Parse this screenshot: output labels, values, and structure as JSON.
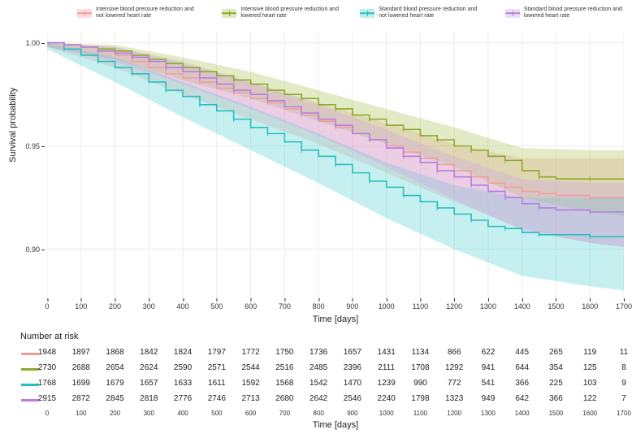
{
  "chart": {
    "type": "kaplan-meier-survival",
    "background_color": "#ffffff",
    "grid_color": "#ececec",
    "text_color": "#333333",
    "title_fontsize": 11,
    "tick_fontsize": 9,
    "legend_fontsize": 7,
    "x_label": "Time [days]",
    "y_label": "Survival probability",
    "xlim": [
      0,
      1700
    ],
    "ylim": [
      0.875,
      1.005
    ],
    "x_ticks": [
      0,
      100,
      200,
      300,
      400,
      500,
      600,
      700,
      800,
      900,
      1000,
      1100,
      1200,
      1300,
      1400,
      1500,
      1600,
      1700
    ],
    "y_ticks": [
      0.9,
      0.95,
      1.0
    ],
    "series": [
      {
        "id": "intensive_not_lowered",
        "label": "Intensive blood pressure reduction and not lowered heart rate",
        "color": "#f29ea0",
        "color_band": "#f29ea0",
        "line_width": 1.6,
        "band_opacity": 0.3,
        "points": [
          [
            0,
            1.0
          ],
          [
            50,
            0.999
          ],
          [
            100,
            0.998
          ],
          [
            150,
            0.996
          ],
          [
            200,
            0.994
          ],
          [
            250,
            0.991
          ],
          [
            300,
            0.988
          ],
          [
            350,
            0.985
          ],
          [
            400,
            0.983
          ],
          [
            450,
            0.981
          ],
          [
            500,
            0.978
          ],
          [
            550,
            0.976
          ],
          [
            600,
            0.973
          ],
          [
            650,
            0.971
          ],
          [
            700,
            0.968
          ],
          [
            750,
            0.965
          ],
          [
            800,
            0.962
          ],
          [
            850,
            0.959
          ],
          [
            900,
            0.956
          ],
          [
            950,
            0.953
          ],
          [
            1000,
            0.95
          ],
          [
            1050,
            0.947
          ],
          [
            1100,
            0.944
          ],
          [
            1150,
            0.941
          ],
          [
            1200,
            0.938
          ],
          [
            1250,
            0.935
          ],
          [
            1300,
            0.932
          ],
          [
            1350,
            0.93
          ],
          [
            1400,
            0.928
          ],
          [
            1450,
            0.927
          ],
          [
            1500,
            0.926
          ],
          [
            1600,
            0.925
          ],
          [
            1700,
            0.925
          ]
        ],
        "ci_points": [
          [
            0,
            0.998,
            1.0
          ],
          [
            200,
            0.988,
            0.998
          ],
          [
            400,
            0.975,
            0.99
          ],
          [
            600,
            0.963,
            0.981
          ],
          [
            800,
            0.951,
            0.971
          ],
          [
            1000,
            0.937,
            0.961
          ],
          [
            1200,
            0.923,
            0.951
          ],
          [
            1400,
            0.91,
            0.944
          ],
          [
            1600,
            0.903,
            0.944
          ],
          [
            1700,
            0.901,
            0.944
          ]
        ]
      },
      {
        "id": "intensive_lowered",
        "label": "Intensive blood pressure reduction and lowered heart rate",
        "color": "#8aaa2a",
        "color_band": "#a8c24f",
        "line_width": 1.6,
        "band_opacity": 0.32,
        "points": [
          [
            0,
            1.0
          ],
          [
            50,
            0.999
          ],
          [
            100,
            0.998
          ],
          [
            150,
            0.997
          ],
          [
            200,
            0.996
          ],
          [
            250,
            0.994
          ],
          [
            300,
            0.992
          ],
          [
            350,
            0.99
          ],
          [
            400,
            0.988
          ],
          [
            450,
            0.986
          ],
          [
            500,
            0.984
          ],
          [
            550,
            0.982
          ],
          [
            600,
            0.98
          ],
          [
            650,
            0.977
          ],
          [
            700,
            0.975
          ],
          [
            750,
            0.973
          ],
          [
            800,
            0.97
          ],
          [
            850,
            0.968
          ],
          [
            900,
            0.965
          ],
          [
            950,
            0.963
          ],
          [
            1000,
            0.96
          ],
          [
            1050,
            0.958
          ],
          [
            1100,
            0.955
          ],
          [
            1150,
            0.953
          ],
          [
            1200,
            0.95
          ],
          [
            1250,
            0.948
          ],
          [
            1300,
            0.945
          ],
          [
            1350,
            0.943
          ],
          [
            1400,
            0.938
          ],
          [
            1450,
            0.935
          ],
          [
            1500,
            0.934
          ],
          [
            1600,
            0.934
          ],
          [
            1700,
            0.934
          ]
        ],
        "ci_points": [
          [
            0,
            0.998,
            1.0
          ],
          [
            200,
            0.992,
            0.999
          ],
          [
            400,
            0.982,
            0.993
          ],
          [
            600,
            0.973,
            0.986
          ],
          [
            800,
            0.962,
            0.977
          ],
          [
            1000,
            0.951,
            0.968
          ],
          [
            1200,
            0.94,
            0.959
          ],
          [
            1400,
            0.925,
            0.949
          ],
          [
            1600,
            0.918,
            0.948
          ],
          [
            1700,
            0.916,
            0.948
          ]
        ]
      },
      {
        "id": "standard_not_lowered",
        "label": "Standard blood pressure reduction and not lowered heart rate",
        "color": "#26bfbf",
        "color_band": "#4fcccc",
        "line_width": 1.6,
        "band_opacity": 0.32,
        "points": [
          [
            0,
            1.0
          ],
          [
            50,
            0.997
          ],
          [
            100,
            0.994
          ],
          [
            150,
            0.991
          ],
          [
            200,
            0.988
          ],
          [
            250,
            0.985
          ],
          [
            300,
            0.981
          ],
          [
            350,
            0.977
          ],
          [
            400,
            0.974
          ],
          [
            450,
            0.97
          ],
          [
            500,
            0.967
          ],
          [
            550,
            0.963
          ],
          [
            600,
            0.959
          ],
          [
            650,
            0.956
          ],
          [
            700,
            0.952
          ],
          [
            750,
            0.948
          ],
          [
            800,
            0.945
          ],
          [
            850,
            0.941
          ],
          [
            900,
            0.937
          ],
          [
            950,
            0.933
          ],
          [
            1000,
            0.93
          ],
          [
            1050,
            0.926
          ],
          [
            1100,
            0.923
          ],
          [
            1150,
            0.92
          ],
          [
            1200,
            0.917
          ],
          [
            1250,
            0.914
          ],
          [
            1300,
            0.911
          ],
          [
            1350,
            0.91
          ],
          [
            1400,
            0.908
          ],
          [
            1450,
            0.907
          ],
          [
            1500,
            0.907
          ],
          [
            1600,
            0.906
          ],
          [
            1700,
            0.906
          ]
        ],
        "ci_points": [
          [
            0,
            0.997,
            1.0
          ],
          [
            200,
            0.981,
            0.993
          ],
          [
            400,
            0.964,
            0.981
          ],
          [
            600,
            0.948,
            0.969
          ],
          [
            800,
            0.932,
            0.956
          ],
          [
            1000,
            0.915,
            0.942
          ],
          [
            1200,
            0.9,
            0.931
          ],
          [
            1400,
            0.887,
            0.925
          ],
          [
            1600,
            0.882,
            0.925
          ],
          [
            1700,
            0.88,
            0.925
          ]
        ]
      },
      {
        "id": "standard_lowered",
        "label": "Standard blood pressure reduction and lowered heart rate",
        "color": "#b57ee0",
        "color_band": "#c9a1e8",
        "line_width": 1.6,
        "band_opacity": 0.32,
        "points": [
          [
            0,
            1.0
          ],
          [
            50,
            0.999
          ],
          [
            100,
            0.998
          ],
          [
            150,
            0.996
          ],
          [
            200,
            0.995
          ],
          [
            250,
            0.993
          ],
          [
            300,
            0.991
          ],
          [
            350,
            0.988
          ],
          [
            400,
            0.986
          ],
          [
            450,
            0.983
          ],
          [
            500,
            0.98
          ],
          [
            550,
            0.977
          ],
          [
            600,
            0.975
          ],
          [
            650,
            0.972
          ],
          [
            700,
            0.969
          ],
          [
            750,
            0.966
          ],
          [
            800,
            0.963
          ],
          [
            850,
            0.96
          ],
          [
            900,
            0.956
          ],
          [
            950,
            0.953
          ],
          [
            1000,
            0.949
          ],
          [
            1050,
            0.945
          ],
          [
            1100,
            0.942
          ],
          [
            1150,
            0.938
          ],
          [
            1200,
            0.935
          ],
          [
            1250,
            0.931
          ],
          [
            1300,
            0.928
          ],
          [
            1350,
            0.925
          ],
          [
            1400,
            0.922
          ],
          [
            1450,
            0.92
          ],
          [
            1500,
            0.919
          ],
          [
            1600,
            0.918
          ],
          [
            1700,
            0.918
          ]
        ],
        "ci_points": [
          [
            0,
            0.998,
            1.0
          ],
          [
            200,
            0.991,
            0.998
          ],
          [
            400,
            0.98,
            0.991
          ],
          [
            600,
            0.968,
            0.981
          ],
          [
            800,
            0.955,
            0.97
          ],
          [
            1000,
            0.94,
            0.958
          ],
          [
            1200,
            0.924,
            0.945
          ],
          [
            1400,
            0.909,
            0.934
          ],
          [
            1600,
            0.903,
            0.932
          ],
          [
            1700,
            0.901,
            0.932
          ]
        ]
      }
    ]
  },
  "risk_table": {
    "title": "Number at risk",
    "x_ticks": [
      0,
      100,
      200,
      300,
      400,
      500,
      600,
      700,
      800,
      900,
      1000,
      1100,
      1200,
      1300,
      1400,
      1500,
      1600,
      1700
    ],
    "x_label": "Time [days]",
    "value_fontsize": 10,
    "rows": [
      {
        "color": "#f29ea0",
        "values": [
          1948,
          1897,
          1868,
          1842,
          1824,
          1797,
          1772,
          1750,
          1736,
          1657,
          1431,
          1134,
          866,
          622,
          445,
          265,
          119,
          11
        ]
      },
      {
        "color": "#8aaa2a",
        "values": [
          2730,
          2688,
          2654,
          2624,
          2590,
          2571,
          2544,
          2516,
          2485,
          2396,
          2111,
          1708,
          1292,
          941,
          644,
          354,
          125,
          8
        ]
      },
      {
        "color": "#26bfbf",
        "values": [
          1768,
          1699,
          1679,
          1657,
          1633,
          1611,
          1592,
          1568,
          1542,
          1470,
          1239,
          990,
          772,
          541,
          366,
          225,
          103,
          9
        ]
      },
      {
        "color": "#b57ee0",
        "values": [
          2915,
          2872,
          2845,
          2818,
          2776,
          2746,
          2713,
          2680,
          2642,
          2546,
          2240,
          1798,
          1323,
          949,
          642,
          366,
          122,
          7
        ]
      }
    ]
  }
}
